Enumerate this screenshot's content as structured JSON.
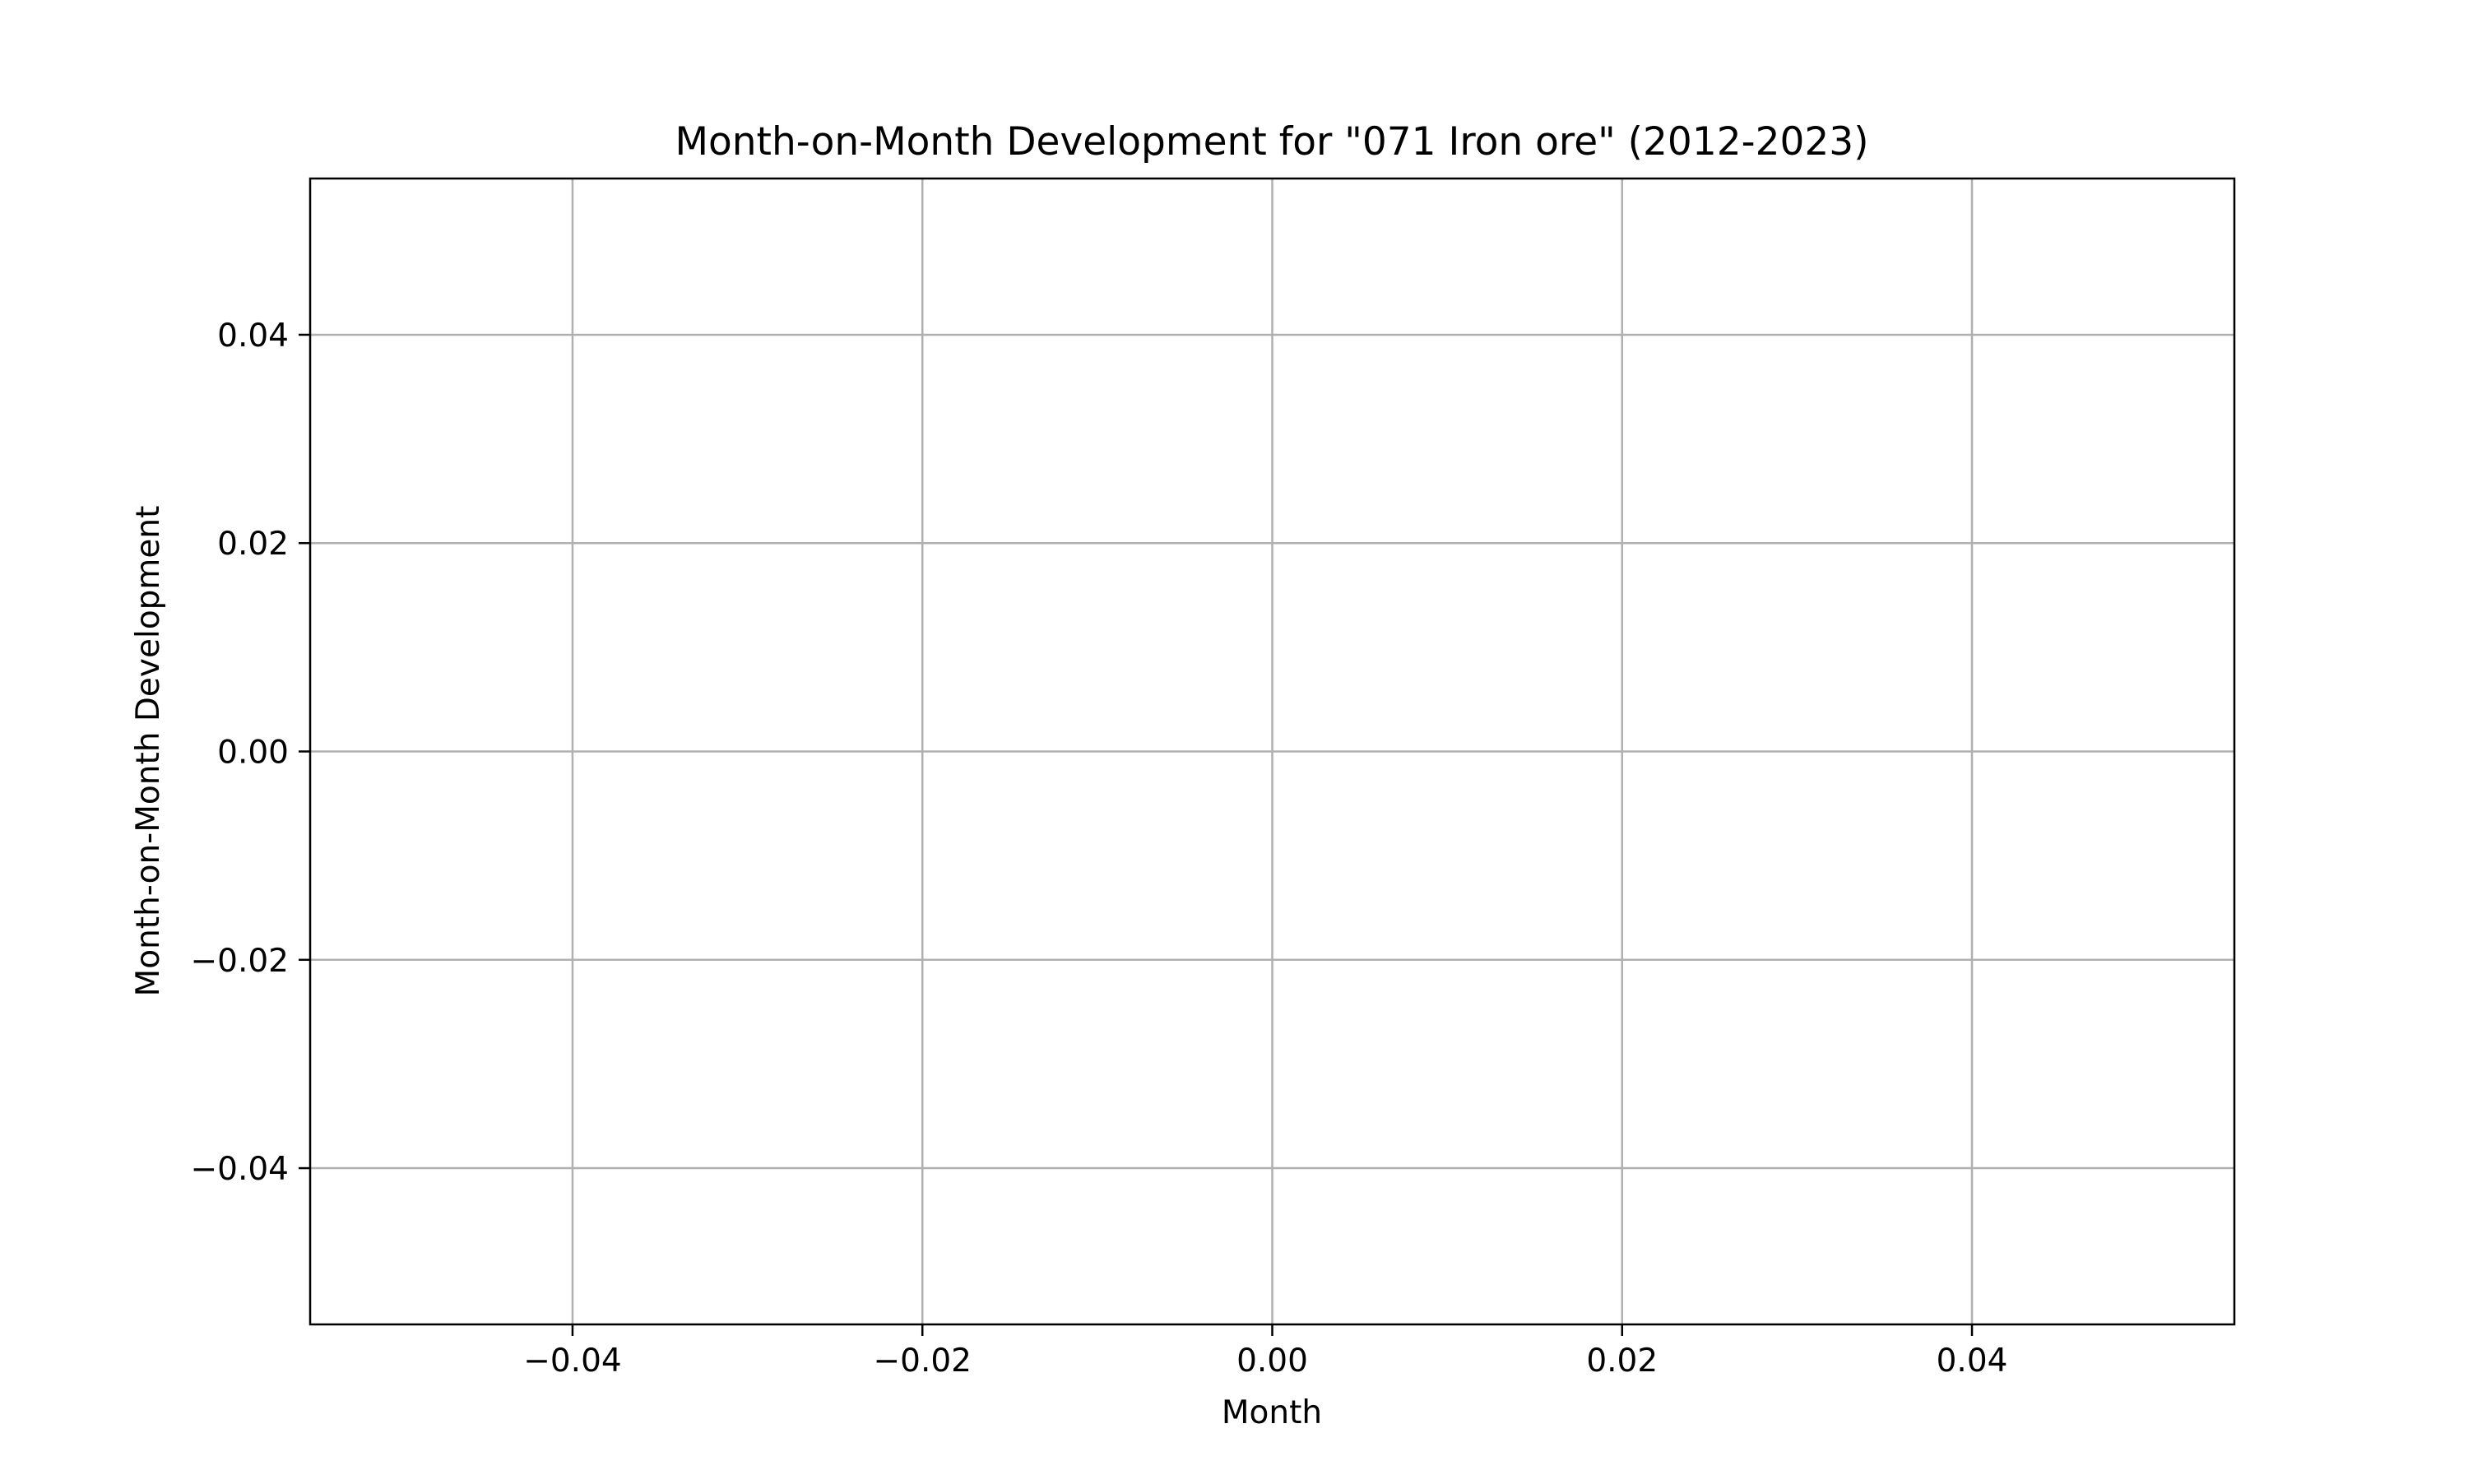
{
  "chart_data": {
    "type": "line",
    "title": "Month-on-Month Development for \"071 Iron ore\" (2012-2023)",
    "xlabel": "Month",
    "ylabel": "Month-on-Month Development",
    "xlim": [
      -0.055,
      0.055
    ],
    "ylim": [
      -0.055,
      0.055
    ],
    "x_ticks": [
      -0.04,
      -0.02,
      0.0,
      0.02,
      0.04
    ],
    "x_tick_labels": [
      "−0.04",
      "−0.02",
      "0.00",
      "0.02",
      "0.04"
    ],
    "y_ticks": [
      0.04,
      0.02,
      0.0,
      -0.02,
      -0.04
    ],
    "y_tick_labels": [
      "0.04",
      "0.02",
      "0.00",
      "−0.02",
      "−0.04"
    ],
    "grid": true,
    "series": [],
    "colors": {
      "axes": "#000000",
      "grid": "#b0b0b0",
      "background": "#ffffff"
    }
  }
}
